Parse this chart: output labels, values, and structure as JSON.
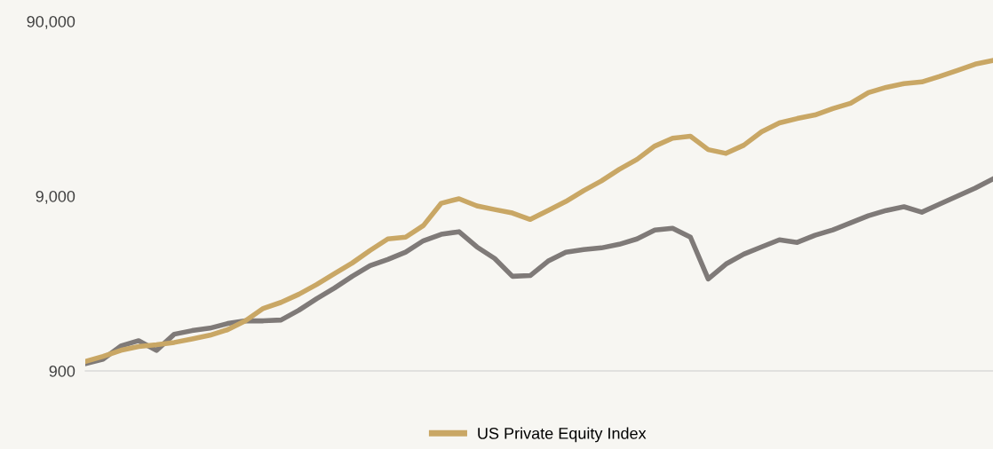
{
  "chart_data": {
    "type": "line",
    "categories": [
      null,
      null,
      null,
      null,
      null,
      null,
      null,
      null,
      null,
      null,
      null,
      null,
      null,
      null,
      null,
      null,
      null,
      null,
      null,
      null,
      null,
      null,
      null,
      null,
      null,
      null,
      null,
      null,
      null,
      null,
      null,
      null,
      null,
      null,
      null,
      null,
      null,
      null,
      null,
      null,
      null,
      null,
      null,
      null,
      null,
      null,
      null,
      null,
      null,
      null,
      null,
      null
    ],
    "series": [
      {
        "color": "#7f7a78",
        "values": [
          990,
          1050,
          1250,
          1340,
          1180,
          1460,
          1530,
          1580,
          1680,
          1740,
          1740,
          1760,
          2000,
          2330,
          2680,
          3130,
          3600,
          3910,
          4300,
          5000,
          5440,
          5630,
          4610,
          3960,
          3130,
          3160,
          3820,
          4300,
          4450,
          4550,
          4770,
          5120,
          5760,
          5890,
          5240,
          3020,
          3680,
          4190,
          4610,
          5060,
          4890,
          5370,
          5760,
          6330,
          6950,
          7450,
          7820,
          7280,
          8100,
          9000,
          10000,
          11300
        ]
      },
      {
        "name": "US Private Equity Index",
        "color": "#c9a765",
        "values": [
          1020,
          1090,
          1180,
          1240,
          1270,
          1310,
          1370,
          1440,
          1550,
          1740,
          2050,
          2220,
          2470,
          2810,
          3240,
          3730,
          4400,
          5120,
          5240,
          6110,
          8190,
          8690,
          7910,
          7540,
          7200,
          6620,
          7450,
          8380,
          9670,
          11000,
          12800,
          14600,
          17400,
          19300,
          19800,
          16600,
          15800,
          17600,
          21000,
          23600,
          25000,
          26200,
          28500,
          30600,
          35200,
          37700,
          39600,
          40500,
          43500,
          47100,
          51200,
          53700
        ]
      }
    ],
    "log": true,
    "ylim": [
      900,
      90000
    ],
    "yticks": [
      {
        "value": 900,
        "label": "900"
      },
      {
        "value": 9000,
        "label": "9,000"
      },
      {
        "value": 90000,
        "label": "90,000"
      }
    ],
    "grid": false,
    "legend": "bottom",
    "line_style": "solid",
    "marker": "none"
  }
}
